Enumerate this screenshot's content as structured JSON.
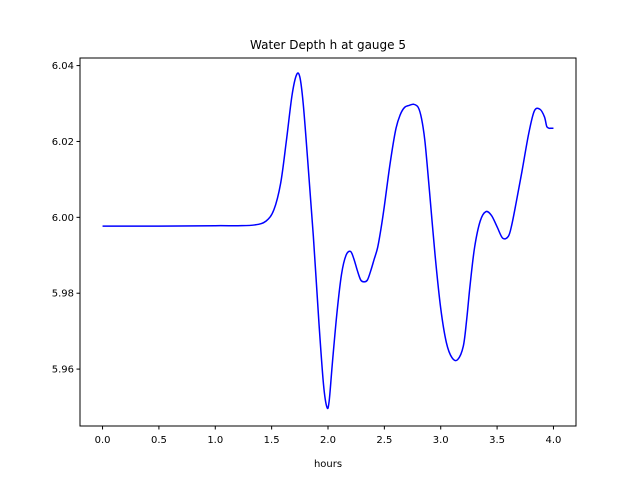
{
  "chart_data": {
    "type": "line",
    "title": "Water Depth h at gauge 5",
    "xlabel": "hours",
    "ylabel": "",
    "xlim": [
      -0.2,
      4.2
    ],
    "ylim": [
      5.945,
      6.042
    ],
    "xticks": [
      0.0,
      0.5,
      1.0,
      1.5,
      2.0,
      2.5,
      3.0,
      3.5,
      4.0
    ],
    "xtick_labels": [
      "0.0",
      "0.5",
      "1.0",
      "1.5",
      "2.0",
      "2.5",
      "3.0",
      "3.5",
      "4.0"
    ],
    "yticks": [
      5.96,
      5.98,
      6.0,
      6.02,
      6.04
    ],
    "ytick_labels": [
      "5.96",
      "5.98",
      "6.00",
      "6.02",
      "6.04"
    ],
    "grid": false,
    "colors": {
      "line": "#0000ff",
      "axes": "#000000",
      "background": "#ffffff"
    },
    "series": [
      {
        "x": [
          0.0,
          0.5,
          1.0,
          1.2,
          1.35,
          1.45,
          1.52,
          1.58,
          1.63,
          1.68,
          1.72,
          1.75,
          1.78,
          1.82,
          1.87,
          1.92,
          1.96,
          1.99,
          2.01,
          2.04,
          2.08,
          2.12,
          2.16,
          2.2,
          2.23,
          2.26,
          2.29,
          2.32,
          2.35,
          2.38,
          2.41,
          2.44,
          2.47,
          2.5,
          2.55,
          2.6,
          2.64,
          2.68,
          2.72,
          2.76,
          2.8,
          2.83,
          2.86,
          2.9,
          2.95,
          3.0,
          3.05,
          3.1,
          3.15,
          3.2,
          3.23,
          3.26,
          3.3,
          3.35,
          3.4,
          3.45,
          3.5,
          3.55,
          3.6,
          3.63,
          3.67,
          3.72,
          3.78,
          3.83,
          3.88,
          3.92,
          3.94,
          3.96,
          3.98,
          4.0
        ],
        "y": [
          5.9977,
          5.9977,
          5.9978,
          5.9978,
          5.998,
          5.999,
          6.002,
          6.009,
          6.02,
          6.032,
          6.0375,
          6.037,
          6.03,
          6.015,
          5.995,
          5.972,
          5.956,
          5.95,
          5.9515,
          5.962,
          5.975,
          5.985,
          5.99,
          5.991,
          5.989,
          5.986,
          5.9835,
          5.983,
          5.9835,
          5.986,
          5.989,
          5.992,
          5.997,
          6.003,
          6.014,
          6.023,
          6.027,
          6.029,
          6.0295,
          6.0298,
          6.029,
          6.026,
          6.02,
          6.007,
          5.99,
          5.976,
          5.967,
          5.963,
          5.9625,
          5.966,
          5.973,
          5.982,
          5.992,
          5.999,
          6.0015,
          6.0005,
          5.9975,
          5.9945,
          5.995,
          5.998,
          6.004,
          6.012,
          6.022,
          6.028,
          6.0285,
          6.0265,
          6.024,
          6.0235,
          6.0235,
          6.0235
        ]
      }
    ]
  }
}
